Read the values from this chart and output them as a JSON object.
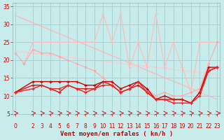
{
  "background_color": "#c8ecec",
  "grid_color": "#a8d4d4",
  "xlabel": "Vent moyen/en rafales ( kn/h )",
  "xlim": [
    -0.3,
    23.3
  ],
  "ylim": [
    5,
    36
  ],
  "yticks": [
    5,
    10,
    15,
    20,
    25,
    30,
    35
  ],
  "xticks": [
    0,
    2,
    3,
    4,
    5,
    6,
    7,
    8,
    9,
    10,
    11,
    12,
    13,
    14,
    15,
    16,
    17,
    18,
    19,
    20,
    21,
    22,
    23
  ],
  "trend1_x": [
    0,
    23
  ],
  "trend1_y": [
    32.5,
    9.0
  ],
  "trend1_color": "#ffbbbb",
  "trend2_x": [
    0,
    23
  ],
  "trend2_y": [
    22.5,
    16.0
  ],
  "trend2_color": "#ffcccc",
  "spiky_x": [
    1,
    2,
    3,
    4,
    5,
    6,
    7,
    8,
    9,
    10,
    11,
    12,
    13,
    14,
    15,
    16,
    17,
    18,
    19,
    20,
    21,
    22,
    23
  ],
  "spiky_y": [
    19,
    25,
    25,
    25,
    25,
    25,
    25,
    25,
    25,
    33,
    25,
    33,
    18,
    25,
    18,
    33,
    18,
    25,
    18,
    11,
    25,
    25,
    25
  ],
  "spiky_color": "#ffbbbb",
  "mid_x": [
    0,
    1,
    2,
    3,
    4,
    5,
    6,
    7,
    8,
    9,
    10,
    11,
    12,
    13,
    14,
    15,
    16,
    17,
    18,
    19,
    20,
    21,
    22,
    23
  ],
  "mid_y": [
    22,
    19,
    23,
    22,
    22,
    21,
    20,
    19,
    18,
    17,
    15,
    13,
    11,
    12,
    13,
    12,
    10,
    11,
    10,
    10,
    11,
    12,
    19,
    25
  ],
  "mid_color": "#ffaaaa",
  "dark1_x": [
    0,
    2,
    3,
    4,
    5,
    6,
    7,
    8,
    9,
    10,
    11,
    12,
    13,
    14,
    15,
    16,
    17,
    18,
    19,
    20,
    21,
    22,
    23
  ],
  "dark1_y": [
    11,
    14,
    14,
    14,
    14,
    14,
    14,
    13,
    13,
    14,
    14,
    12,
    13,
    14,
    12,
    9,
    10,
    9,
    9,
    8,
    11,
    18,
    18
  ],
  "dark1_color": "#cc0000",
  "dark2_x": [
    0,
    2,
    3,
    4,
    5,
    6,
    7,
    8,
    9,
    10,
    11,
    12,
    13,
    14,
    15,
    16,
    17,
    18,
    19,
    20,
    21,
    22,
    23
  ],
  "dark2_y": [
    11,
    13,
    13,
    12,
    11,
    13,
    12,
    12,
    12,
    14,
    13,
    11,
    12,
    13,
    11,
    9,
    9,
    9,
    9,
    8,
    11,
    17,
    18
  ],
  "dark2_color": "#dd1111",
  "dark3_x": [
    0,
    2,
    3,
    4,
    5,
    6,
    7,
    8,
    9,
    10,
    11,
    12,
    13,
    14,
    15,
    16,
    17,
    18,
    19,
    20,
    21,
    22,
    23
  ],
  "dark3_y": [
    11,
    12,
    13,
    12,
    12,
    13,
    12,
    11,
    12,
    13,
    13,
    11,
    12,
    14,
    11,
    9,
    9,
    8,
    8,
    8,
    10,
    17,
    18
  ],
  "dark3_color": "#ee2222",
  "arrow_xticks": [
    0,
    2,
    3,
    4,
    5,
    6,
    7,
    8,
    9,
    10,
    11,
    12,
    13,
    14,
    15,
    16,
    17,
    18,
    19,
    20,
    21,
    22,
    23
  ]
}
